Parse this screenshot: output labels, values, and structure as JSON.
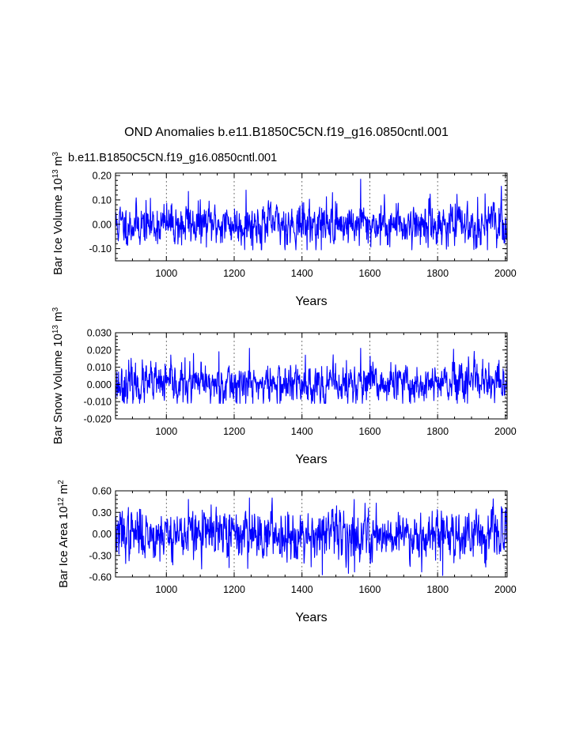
{
  "title": "OND Anomalies b.e11.B1850C5CN.f19_g16.0850cntl.001",
  "subtitle": "b.e11.B1850C5CN.f19_g16.0850cntl.001",
  "colors": {
    "series": "#0000ff",
    "subtitle": "#0000ff",
    "grid": "#555555"
  },
  "chart_data": [
    {
      "type": "line",
      "series": [
        {
          "name": "b.e11.B1850C5CN.f19_g16.0850cntl.001",
          "color": "#0000ff"
        }
      ],
      "ylabel": {
        "base": "Bar Ice Volume 10",
        "exp": "13",
        "unit": " m",
        "unit_exp": "3"
      },
      "xlabel": "Years",
      "xlim": [
        850,
        2005
      ],
      "ylim": [
        -0.15,
        0.21
      ],
      "xticks": [
        1000,
        1200,
        1400,
        1600,
        1800,
        2000
      ],
      "xtick_labels": [
        "1000",
        "1200",
        "1400",
        "1600",
        "1800",
        "2000"
      ],
      "yticks": [
        -0.1,
        0.0,
        0.1,
        0.2
      ],
      "ytick_labels": [
        "-0.10",
        "0.00",
        "0.10",
        "0.20"
      ],
      "grid": "vertical dashed at x ticks",
      "signal": {
        "mean": 0.0,
        "std": 0.04,
        "min": -0.105,
        "max": 0.185,
        "seed": 11
      },
      "peaks": [
        [
          1573,
          0.185
        ],
        [
          1065,
          0.135
        ],
        [
          1235,
          0.14
        ],
        [
          1490,
          0.13
        ],
        [
          1940,
          0.125
        ],
        [
          1457,
          -0.105
        ],
        [
          1045,
          -0.085
        ]
      ]
    },
    {
      "type": "line",
      "series": [
        {
          "name": "b.e11.B1850C5CN.f19_g16.0850cntl.001",
          "color": "#0000ff"
        }
      ],
      "ylabel": {
        "base": "Bar Snow Volume 10",
        "exp": "13",
        "unit": " m",
        "unit_exp": "3"
      },
      "xlabel": "Years",
      "xlim": [
        850,
        2005
      ],
      "ylim": [
        -0.02,
        0.03
      ],
      "xticks": [
        1000,
        1200,
        1400,
        1600,
        1800,
        2000
      ],
      "xtick_labels": [
        "1000",
        "1200",
        "1400",
        "1600",
        "1800",
        "2000"
      ],
      "yticks": [
        -0.02,
        -0.01,
        0.0,
        0.01,
        0.02,
        0.03
      ],
      "ytick_labels": [
        "-0.020",
        "-0.010",
        "0.000",
        "0.010",
        "0.020",
        "0.030"
      ],
      "grid": "vertical dashed at x ticks",
      "signal": {
        "mean": 0.0,
        "std": 0.0055,
        "min": -0.011,
        "max": 0.021,
        "seed": 23
      },
      "peaks": [
        [
          1245,
          0.021
        ],
        [
          1573,
          0.021
        ],
        [
          1080,
          0.018
        ],
        [
          1155,
          0.019
        ],
        [
          1410,
          0.017
        ],
        [
          1855,
          -0.009
        ],
        [
          1465,
          -0.01
        ]
      ]
    },
    {
      "type": "line",
      "series": [
        {
          "name": "b.e11.B1850C5CN.f19_g16.0850cntl.001",
          "color": "#0000ff"
        }
      ],
      "ylabel": {
        "base": "Bar Ice Area 10",
        "exp": "12",
        "unit": " m",
        "unit_exp": "2"
      },
      "xlabel": "Years",
      "xlim": [
        850,
        2005
      ],
      "ylim": [
        -0.6,
        0.6
      ],
      "xticks": [
        1000,
        1200,
        1400,
        1600,
        1800,
        2000
      ],
      "xtick_labels": [
        "1000",
        "1200",
        "1400",
        "1600",
        "1800",
        "2000"
      ],
      "yticks": [
        -0.6,
        -0.3,
        0.0,
        0.3,
        0.6
      ],
      "ytick_labels": [
        "-0.60",
        "-0.30",
        "0.00",
        "0.30",
        "0.60"
      ],
      "grid": "vertical dashed at x ticks",
      "signal": {
        "mean": 0.0,
        "std": 0.16,
        "min": -0.58,
        "max": 0.5,
        "seed": 37
      },
      "peaks": [
        [
          1065,
          0.48
        ],
        [
          1245,
          0.5
        ],
        [
          1460,
          -0.57
        ],
        [
          1555,
          -0.53
        ],
        [
          1815,
          -0.58
        ],
        [
          1185,
          -0.47
        ]
      ]
    }
  ]
}
